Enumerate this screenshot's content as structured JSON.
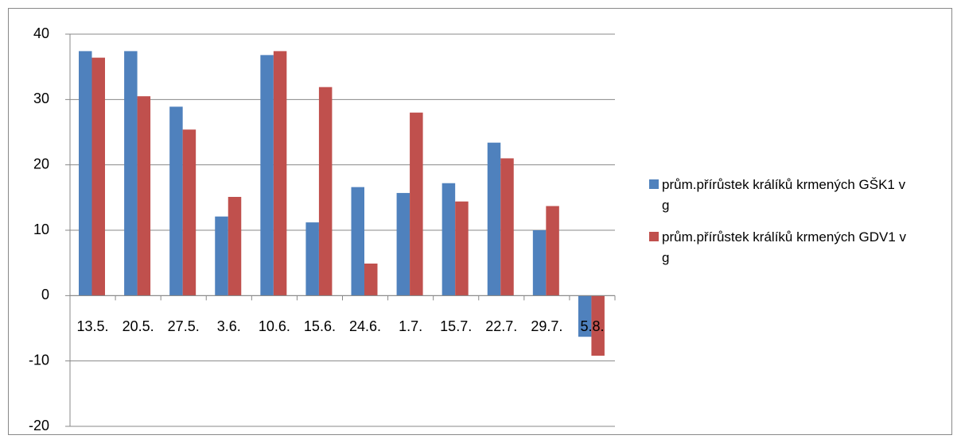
{
  "chart_data": {
    "type": "bar",
    "categories": [
      "13.5.",
      "20.5.",
      "27.5.",
      "3.6.",
      "10.6.",
      "15.6.",
      "24.6.",
      "1.7.",
      "15.7.",
      "22.7.",
      "29.7.",
      "5.8."
    ],
    "series": [
      {
        "name": "prům.přírůstek králíků krmených GŠK1 v g",
        "color": "#4f81bd",
        "values": [
          37.4,
          37.4,
          28.9,
          12.1,
          36.8,
          11.2,
          16.6,
          15.7,
          17.2,
          23.4,
          10.0,
          -6.3
        ]
      },
      {
        "name": "prům.přírůstek králíků krmených GDV1 v g",
        "color": "#c0504d",
        "values": [
          36.4,
          30.5,
          25.4,
          15.1,
          37.4,
          31.9,
          4.9,
          28.0,
          14.4,
          21.0,
          13.7,
          -9.2
        ]
      }
    ],
    "ylim": [
      -20,
      40
    ],
    "yticks": [
      -20,
      -10,
      0,
      10,
      20,
      30,
      40
    ],
    "grid": true,
    "legend": "right"
  }
}
